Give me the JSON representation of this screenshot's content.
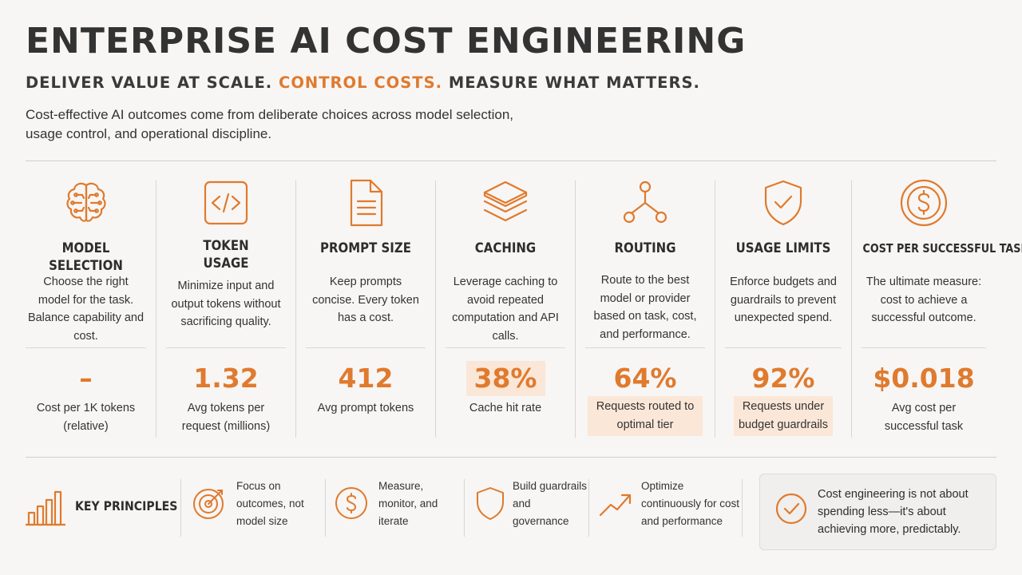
{
  "header": {
    "title": "ENTERPRISE AI COST ENGINEERING",
    "subtitle_part1": "DELIVER VALUE AT SCALE.",
    "subtitle_accent": "CONTROL COSTS.",
    "subtitle_part2": "MEASURE WHAT MATTERS.",
    "intro": "Cost-effective AI outcomes come from deliberate choices across model selection, usage control, and operational discipline."
  },
  "colors": {
    "accent": "#e07a2e",
    "highlight": "#fbe7d8",
    "text": "#2d2d2d",
    "background": "#f7f6f4"
  },
  "metrics": [
    {
      "icon": "brain-icon",
      "title": "MODEL SELECTION",
      "description": "Choose the right model for the task. Balance capability and cost.",
      "value": "–",
      "label": "Cost per 1K tokens (relative)"
    },
    {
      "icon": "code-icon",
      "title": "TOKEN USAGE",
      "description": "Minimize input and output tokens without sacrificing quality.",
      "value": "1.32",
      "label": "Avg tokens per request (millions)"
    },
    {
      "icon": "document-icon",
      "title": "PROMPT SIZE",
      "description": "Keep prompts concise. Every token has a cost.",
      "value": "412",
      "label": "Avg prompt tokens"
    },
    {
      "icon": "layers-icon",
      "title": "CACHING",
      "description": "Leverage caching to avoid repeated computation and API calls.",
      "value": "38%",
      "label": "Cache hit rate"
    },
    {
      "icon": "routing-icon",
      "title": "ROUTING",
      "description": "Route to the best model or provider based on task, cost, and performance.",
      "value": "64%",
      "label": "Requests routed to optimal tier"
    },
    {
      "icon": "shield-check-icon",
      "title": "USAGE LIMITS",
      "description": "Enforce budgets and guardrails to prevent unexpected spend.",
      "value": "92%",
      "label": "Requests under budget guardrails"
    },
    {
      "icon": "dollar-coin-icon",
      "title": "COST PER SUCCESSFUL TASK",
      "description": "The ultimate measure: cost to achieve a successful outcome.",
      "value": "$0.018",
      "label": "Avg cost per successful task"
    }
  ],
  "principles": {
    "title": "KEY PRINCIPLES",
    "items": [
      {
        "icon": "target-icon",
        "text": "Focus on outcomes, not model size"
      },
      {
        "icon": "dollar-icon",
        "text": "Measure, monitor, and iterate"
      },
      {
        "icon": "shield-icon",
        "text": "Build guardrails and governance"
      },
      {
        "icon": "trend-up-icon",
        "text": "Optimize continuously for cost and performance"
      }
    ],
    "callout": "Cost engineering is not about spending less—it's about achieving more, predictably."
  }
}
